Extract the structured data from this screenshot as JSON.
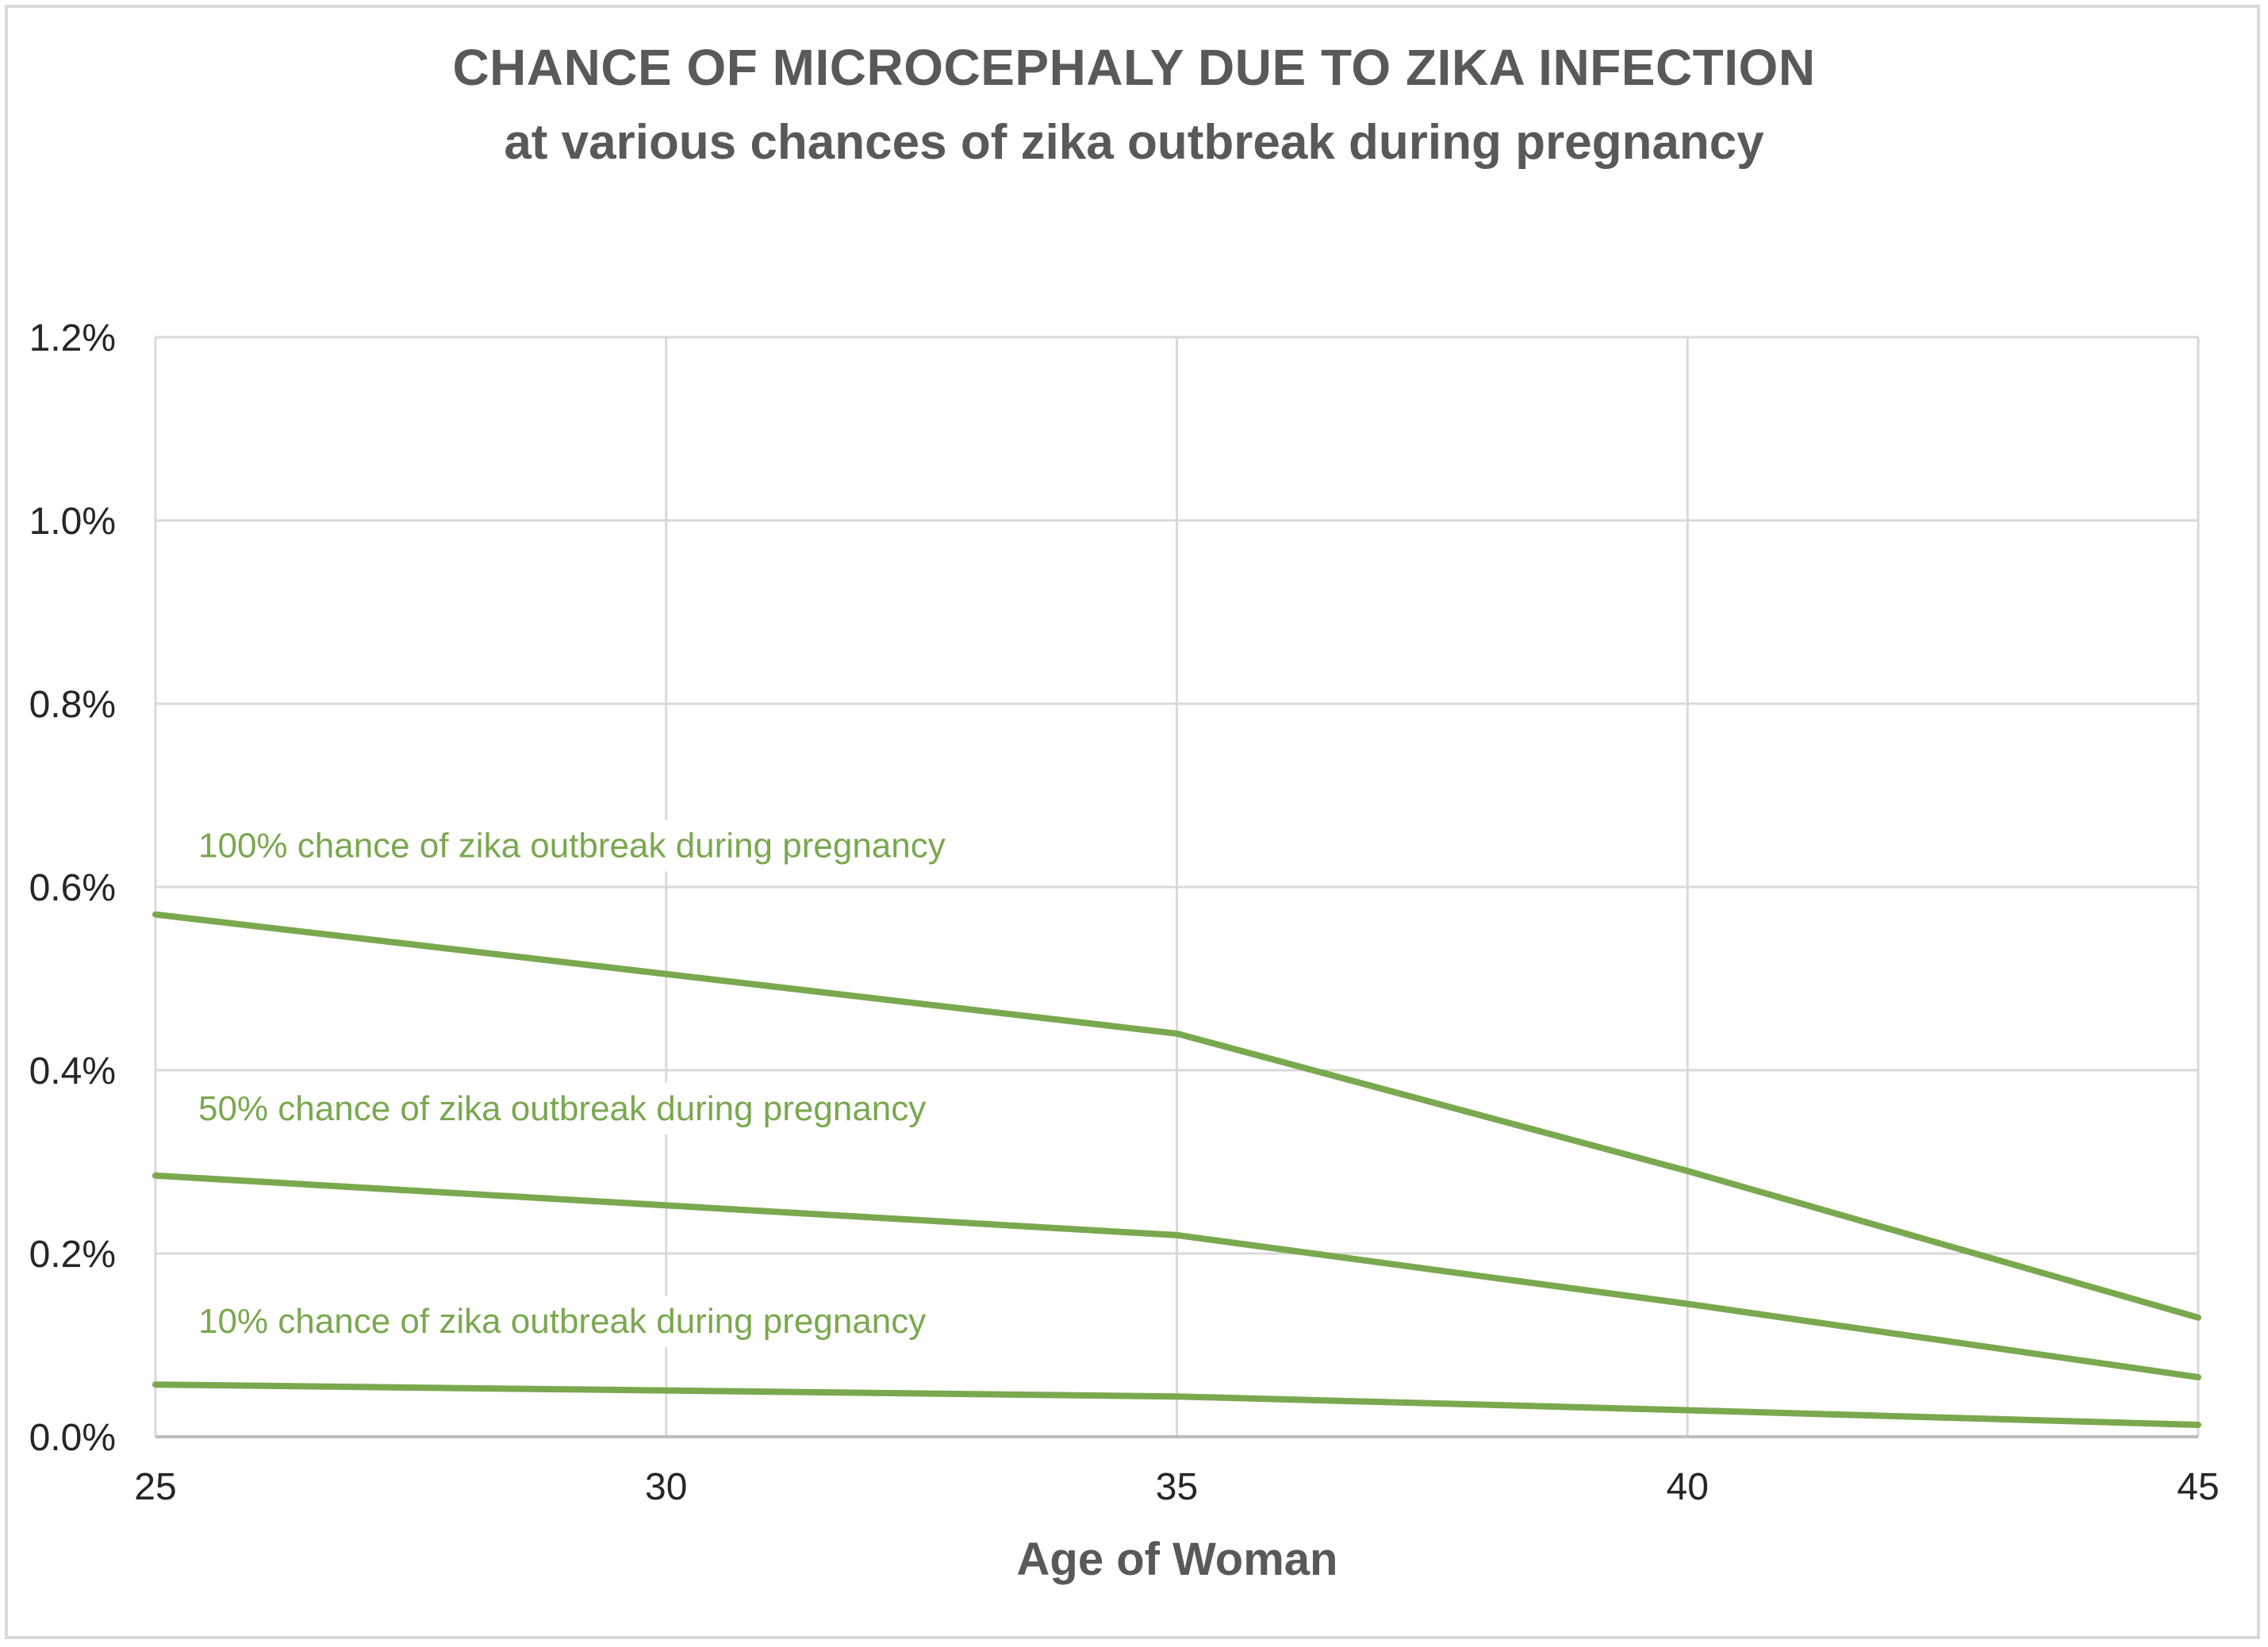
{
  "chart_data": {
    "type": "line",
    "title": "CHANCE OF MICROCEPHALY DUE TO ZIKA INFECTION",
    "subtitle": "at various chances of zika outbreak during pregnancy",
    "xlabel": "Age of Woman",
    "ylabel": "",
    "x": [
      25,
      35,
      40,
      45
    ],
    "xlim": [
      25,
      45
    ],
    "ylim": [
      0,
      1.2
    ],
    "x_ticks": [
      "25",
      "30",
      "35",
      "40",
      "45"
    ],
    "y_ticks": [
      "0.0%",
      "0.2%",
      "0.4%",
      "0.6%",
      "0.8%",
      "1.0%",
      "1.2%"
    ],
    "grid": true,
    "legend": "inline labels above each line",
    "line_color": "#7aa84f",
    "grid_color": "#d9d9d9",
    "series": [
      {
        "name": "100% chance of zika outbreak during pregnancy",
        "values": [
          0.57,
          0.44,
          0.29,
          0.13
        ]
      },
      {
        "name": "50% chance of zika outbreak during pregnancy",
        "values": [
          0.285,
          0.22,
          0.145,
          0.065
        ]
      },
      {
        "name": "10% chance of zika outbreak during pregnancy",
        "values": [
          0.057,
          0.044,
          0.029,
          0.013
        ]
      }
    ]
  }
}
